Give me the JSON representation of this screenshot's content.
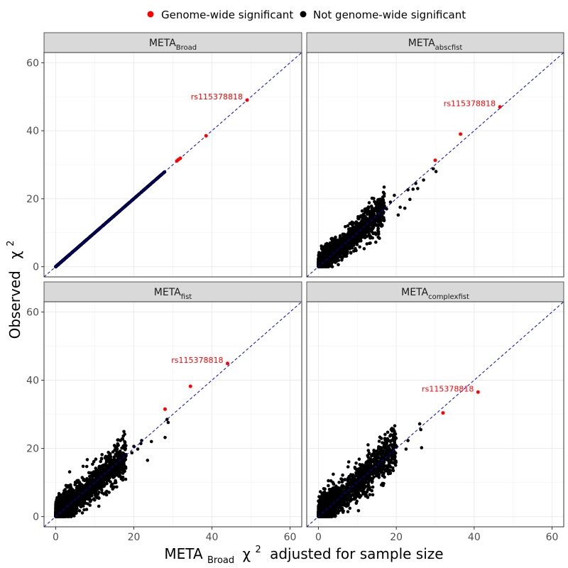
{
  "legend": {
    "position": "top",
    "items": [
      {
        "label": "Genome-wide significant",
        "color": "#ff0000"
      },
      {
        "label": "Not genome-wide significant",
        "color": "#000000"
      }
    ]
  },
  "axes": {
    "ylabel_main": "Observed",
    "ylabel_sym": "χ",
    "ylabel_sup": "2",
    "xlabel_main": "META",
    "xlabel_sub": "Broad",
    "xlabel_sym": "χ",
    "xlabel_sup": "2",
    "xlabel_rest": "adjusted for sample size"
  },
  "colors": {
    "significant": "#ff0000",
    "not_significant": "#000000",
    "not_significant_on_diagonal": "#000033",
    "reference_line": "#0000cc",
    "strip_bg": "#d9d9d9",
    "grid": "#ebebeb"
  },
  "chart_data": [
    {
      "type": "scatter",
      "panel_main": "META",
      "panel_sub": "Broad",
      "xlim": [
        -3,
        63
      ],
      "ylim": [
        -3,
        63
      ],
      "xticks": [
        0,
        20,
        40,
        60
      ],
      "yticks": [
        0,
        20,
        40,
        60
      ],
      "reference_line": "y = x",
      "grid": true,
      "spread": 0,
      "significant_points": [
        [
          49,
          49
        ],
        [
          38.5,
          38.5
        ],
        [
          31.9,
          31.9
        ],
        [
          31.4,
          31.5
        ],
        [
          31,
          31.1
        ]
      ],
      "annotation": {
        "text": "rs115378818",
        "x": 49,
        "y": 49
      },
      "bulk_max": 28
    },
    {
      "type": "scatter",
      "panel_main": "META",
      "panel_sub": "abscfist",
      "xlim": [
        -3,
        63
      ],
      "ylim": [
        -3,
        63
      ],
      "xticks": [
        0,
        20,
        40,
        60
      ],
      "yticks": [
        0,
        20,
        40,
        60
      ],
      "reference_line": "y = x",
      "grid": true,
      "spread": 2.3,
      "significant_points": [
        [
          46.6,
          47
        ],
        [
          36.5,
          39
        ],
        [
          30,
          31.3
        ]
      ],
      "annotation": {
        "text": "rs115378818",
        "x": 46.6,
        "y": 47
      },
      "nonsig_outliers": [
        [
          29.5,
          28.8
        ],
        [
          30.2,
          28
        ],
        [
          27,
          25.5
        ],
        [
          25,
          24.5
        ],
        [
          24.3,
          22.8
        ],
        [
          25.5,
          23
        ],
        [
          23,
          22.6
        ],
        [
          23.5,
          19.8
        ],
        [
          19.5,
          21
        ],
        [
          21,
          17.5
        ],
        [
          18.5,
          19
        ],
        [
          20.5,
          15.2
        ],
        [
          22.2,
          17.2
        ],
        [
          17.5,
          17
        ]
      ],
      "bulk_max": 17
    },
    {
      "type": "scatter",
      "panel_main": "META",
      "panel_sub": "fist",
      "xlim": [
        -3,
        63
      ],
      "ylim": [
        -3,
        63
      ],
      "xticks": [
        0,
        20,
        40,
        60
      ],
      "yticks": [
        0,
        20,
        40,
        60
      ],
      "reference_line": "y = x",
      "grid": true,
      "spread": 2.8,
      "significant_points": [
        [
          44,
          44.9
        ],
        [
          34.5,
          38.2
        ],
        [
          28,
          31.5
        ]
      ],
      "annotation": {
        "text": "rs115378818",
        "x": 44,
        "y": 44.9
      },
      "nonsig_outliers": [
        [
          28.5,
          28.5
        ],
        [
          28.8,
          27.6
        ],
        [
          28,
          23.2
        ],
        [
          24.5,
          22
        ],
        [
          22,
          22.3
        ],
        [
          21,
          19.8
        ],
        [
          19.5,
          18.7
        ],
        [
          18,
          17.8
        ],
        [
          20,
          20.6
        ],
        [
          21.8,
          21.4
        ],
        [
          23.5,
          16.5
        ],
        [
          16.5,
          14.5
        ]
      ],
      "bulk_max": 18
    },
    {
      "type": "scatter",
      "panel_main": "META",
      "panel_sub": "complexfist",
      "xlim": [
        -3,
        63
      ],
      "ylim": [
        -3,
        63
      ],
      "xticks": [
        0,
        20,
        40,
        60
      ],
      "yticks": [
        0,
        20,
        40,
        60
      ],
      "reference_line": "y = x",
      "grid": true,
      "spread": 3,
      "significant_points": [
        [
          41,
          36.5
        ],
        [
          32,
          30.4
        ]
      ],
      "annotation": {
        "text": "rs115378818",
        "x": 41,
        "y": 36.5
      },
      "nonsig_outliers": [
        [
          26,
          27.2
        ],
        [
          26.3,
          25.5
        ],
        [
          26.5,
          20.2
        ],
        [
          22.5,
          19.8
        ],
        [
          23,
          22.3
        ],
        [
          20,
          20.7
        ],
        [
          18.5,
          22
        ],
        [
          17.5,
          19.2
        ],
        [
          16.5,
          17
        ],
        [
          18.5,
          16.4
        ],
        [
          15,
          13.5
        ],
        [
          14,
          14.2
        ]
      ],
      "bulk_max": 20
    }
  ]
}
